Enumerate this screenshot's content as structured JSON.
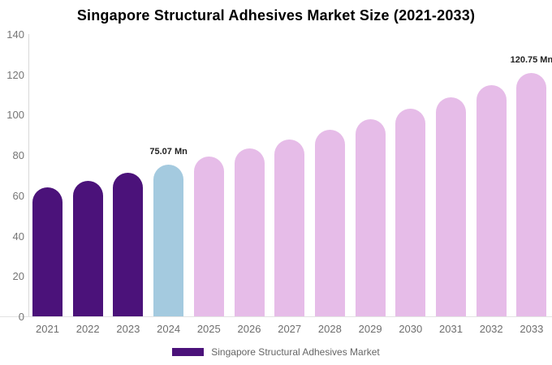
{
  "title": "Singapore Structural Adhesives Market Size (2021-2033)",
  "chart_data": {
    "type": "bar",
    "categories": [
      "2021",
      "2022",
      "2023",
      "2024",
      "2025",
      "2026",
      "2027",
      "2028",
      "2029",
      "2030",
      "2031",
      "2032",
      "2033"
    ],
    "values": [
      64.0,
      67.3,
      71.2,
      75.07,
      79.1,
      83.4,
      87.9,
      92.7,
      97.7,
      103.0,
      108.6,
      114.5,
      120.75
    ],
    "bar_groups": [
      "historical",
      "historical",
      "historical",
      "current",
      "forecast",
      "forecast",
      "forecast",
      "forecast",
      "forecast",
      "forecast",
      "forecast",
      "forecast",
      "forecast"
    ],
    "value_labels": {
      "2024": "75.07 Mn",
      "2033": "120.75 Mn"
    },
    "title": "Singapore Structural Adhesives Market Size (2021-2033)",
    "xlabel": "",
    "ylabel": "",
    "ylim": [
      0,
      140
    ],
    "ytick_step": 20,
    "yticks": [
      "0",
      "20",
      "40",
      "60",
      "80",
      "100",
      "120",
      "140"
    ],
    "grid": false,
    "legend_position": "bottom",
    "colors": {
      "historical": "#4B127A",
      "current": "#A4CADF",
      "forecast": "#E6BCE8"
    },
    "legend": {
      "label": "Singapore Structural Adhesives Market",
      "swatch_color": "#4B127A"
    },
    "text_colors": {
      "title": "#000000",
      "axis_ticks": "#757575",
      "value_labels": "#222222",
      "legend": "#666666"
    }
  }
}
